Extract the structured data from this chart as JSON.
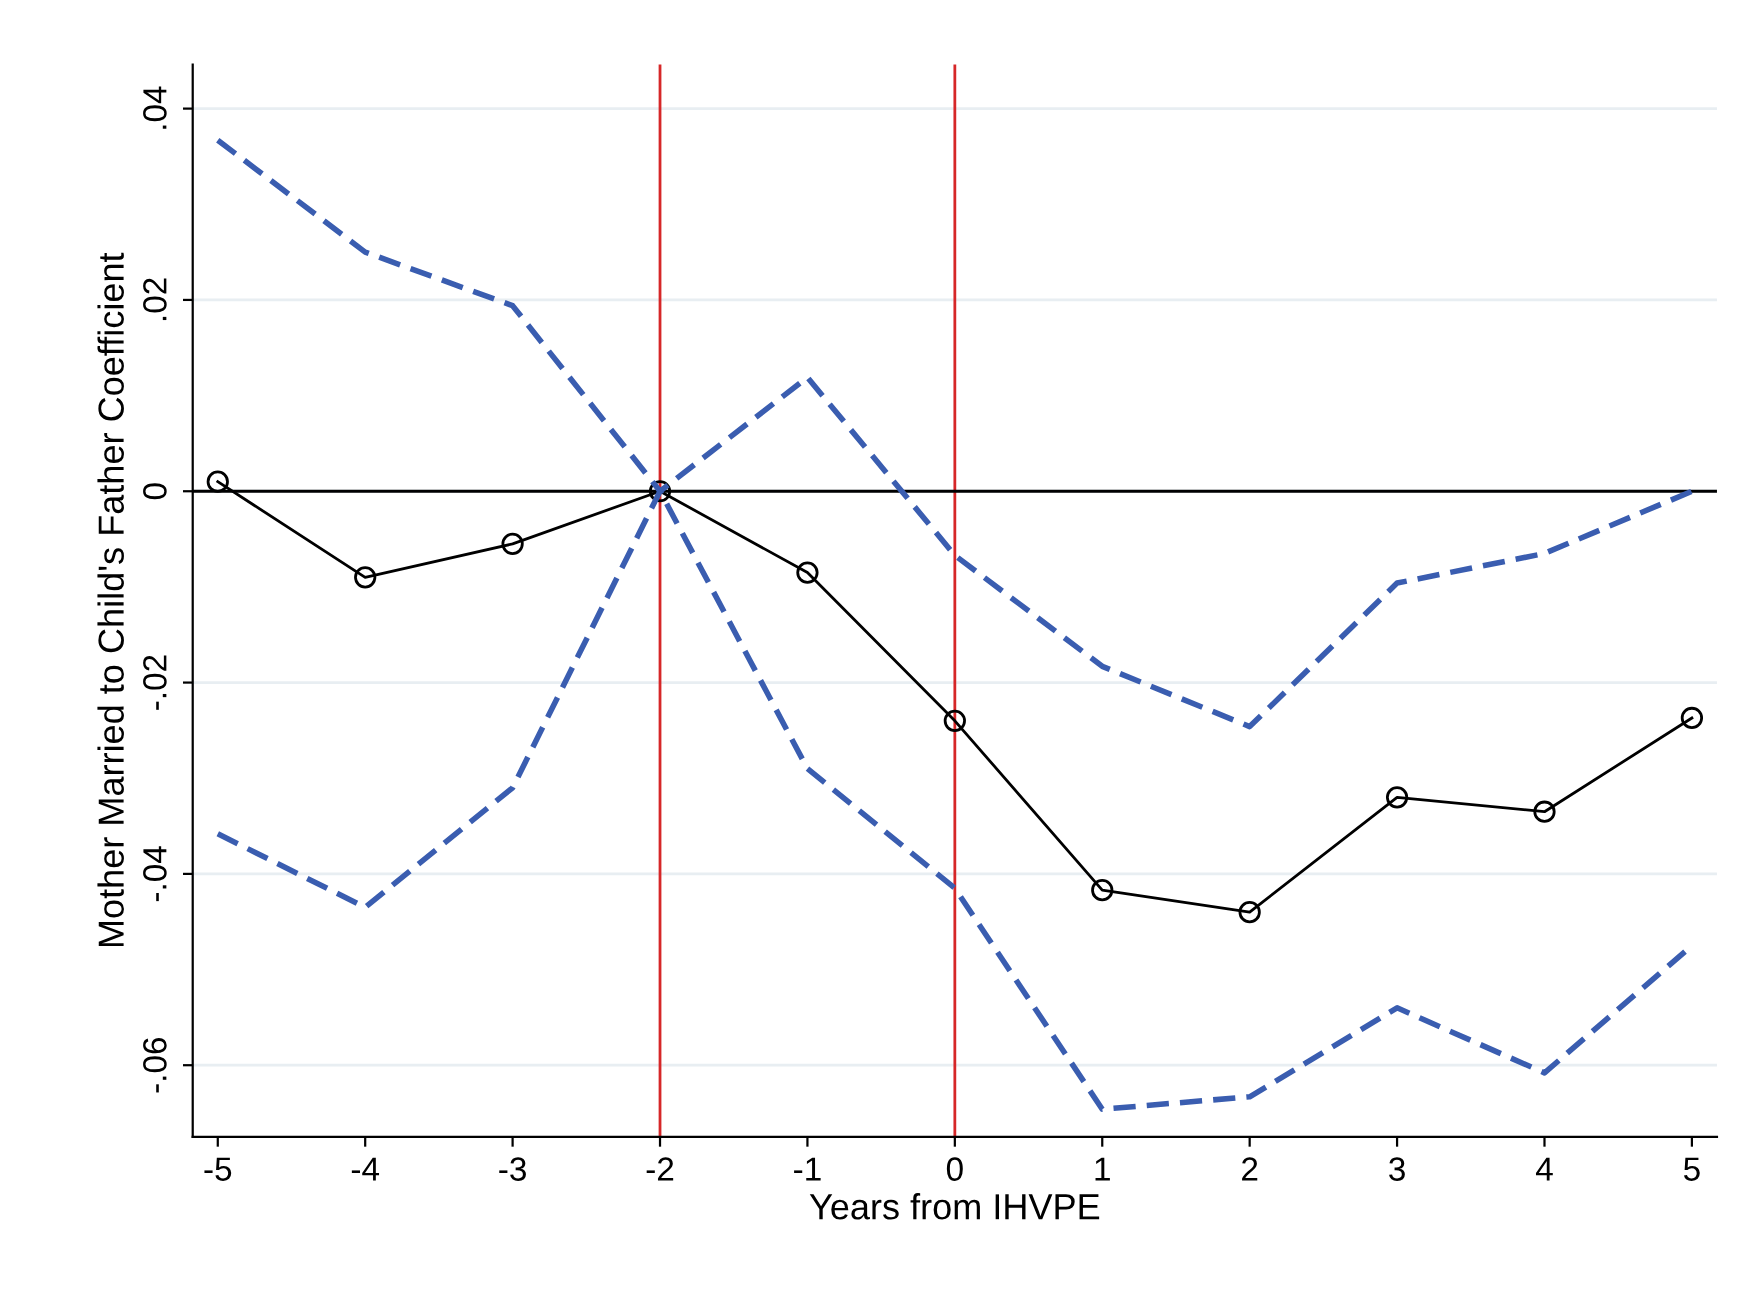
{
  "chart_data": {
    "type": "line",
    "xlabel": "Years from IHVPE",
    "ylabel": "Mother Married to Child's Father Coefficient",
    "x": [
      -5,
      -4,
      -3,
      -2,
      -1,
      0,
      1,
      2,
      3,
      4,
      5
    ],
    "series": [
      {
        "color": "#000000",
        "marker": "circle",
        "line_style": "solid",
        "values": [
          0.001,
          -0.009,
          -0.0055,
          0,
          -0.0085,
          -0.024,
          -0.0417,
          -0.044,
          -0.032,
          -0.0335,
          -0.0237
        ]
      },
      {
        "color": "#3a5db0",
        "marker": "none",
        "line_style": "dashed",
        "values": [
          0.0367,
          0.025,
          0.0194,
          0,
          0.0119,
          -0.0067,
          -0.0183,
          -0.0246,
          -0.0096,
          -0.0065,
          0
        ]
      },
      {
        "color": "#3a5db0",
        "marker": "none",
        "line_style": "dashed",
        "values": [
          -0.0358,
          -0.0435,
          -0.031,
          0,
          -0.029,
          -0.0415,
          -0.0646,
          -0.0633,
          -0.054,
          -0.0608,
          -0.0475
        ]
      }
    ],
    "xlim": [
      -5.17,
      5.17
    ],
    "ylim": [
      -0.0675,
      0.0446
    ],
    "xticks": [
      -5,
      -4,
      -3,
      -2,
      -1,
      0,
      1,
      2,
      3,
      4,
      5
    ],
    "yticks": [
      {
        "value": -0.06,
        "label": "-.06"
      },
      {
        "value": -0.04,
        "label": "-.04"
      },
      {
        "value": -0.02,
        "label": "-.02"
      },
      0,
      {
        "value": 0.02,
        "label": ".02"
      },
      {
        "value": 0.04,
        "label": ".04"
      }
    ],
    "ref_lines": [
      {
        "axis": "x",
        "value": -2,
        "color": "#d62728"
      },
      {
        "axis": "x",
        "value": 0,
        "color": "#d62728"
      },
      {
        "axis": "y",
        "value": 0,
        "color": "#000000"
      }
    ],
    "grid": "y",
    "legend": false
  }
}
